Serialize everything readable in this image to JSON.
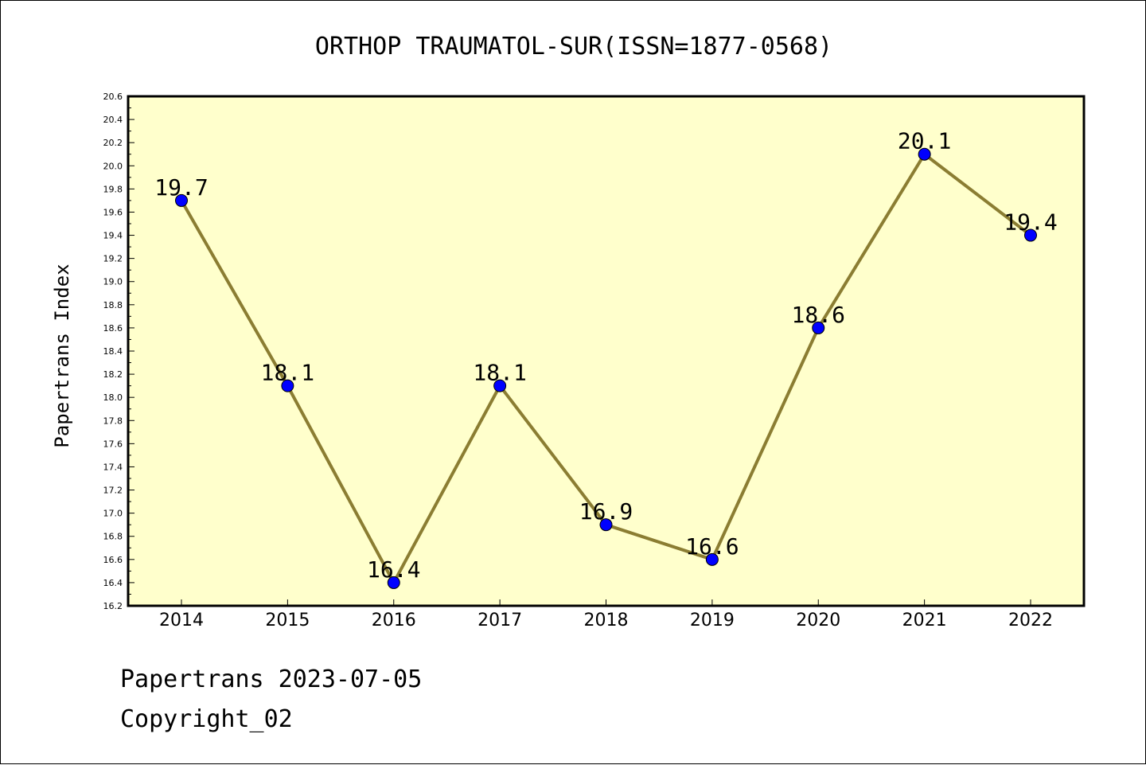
{
  "chart_data": {
    "type": "line",
    "title": "ORTHOP TRAUMATOL-SUR(ISSN=1877-0568)",
    "xlabel": "",
    "ylabel": "Papertrans Index",
    "categories": [
      "2014",
      "2015",
      "2016",
      "2017",
      "2018",
      "2019",
      "2020",
      "2021",
      "2022"
    ],
    "series": [
      {
        "values": [
          19.7,
          18.1,
          16.4,
          18.1,
          16.9,
          16.6,
          18.6,
          20.1,
          19.4
        ],
        "labels": [
          "19.7",
          "18.1",
          "16.4",
          "18.1",
          "16.9",
          "16.6",
          "18.6",
          "20.1",
          "19.4"
        ]
      }
    ],
    "ylim": [
      16.2,
      20.6
    ],
    "yticks": [
      "16.2",
      "16.4",
      "16.6",
      "16.8",
      "17.0",
      "17.2",
      "17.4",
      "17.6",
      "17.8",
      "18.0",
      "18.2",
      "18.4",
      "18.6",
      "18.8",
      "19.0",
      "19.2",
      "19.4",
      "19.6",
      "19.8",
      "20.0",
      "20.2",
      "20.4",
      "20.6"
    ],
    "grid": false,
    "legend": "none",
    "colors": {
      "plot_background": "#ffffcc",
      "line": "#8b7d32",
      "marker": "#0000ff",
      "axes": "#000000"
    }
  },
  "footer": {
    "line1": "Papertrans 2023-07-05",
    "line2": "Copyright_02"
  }
}
